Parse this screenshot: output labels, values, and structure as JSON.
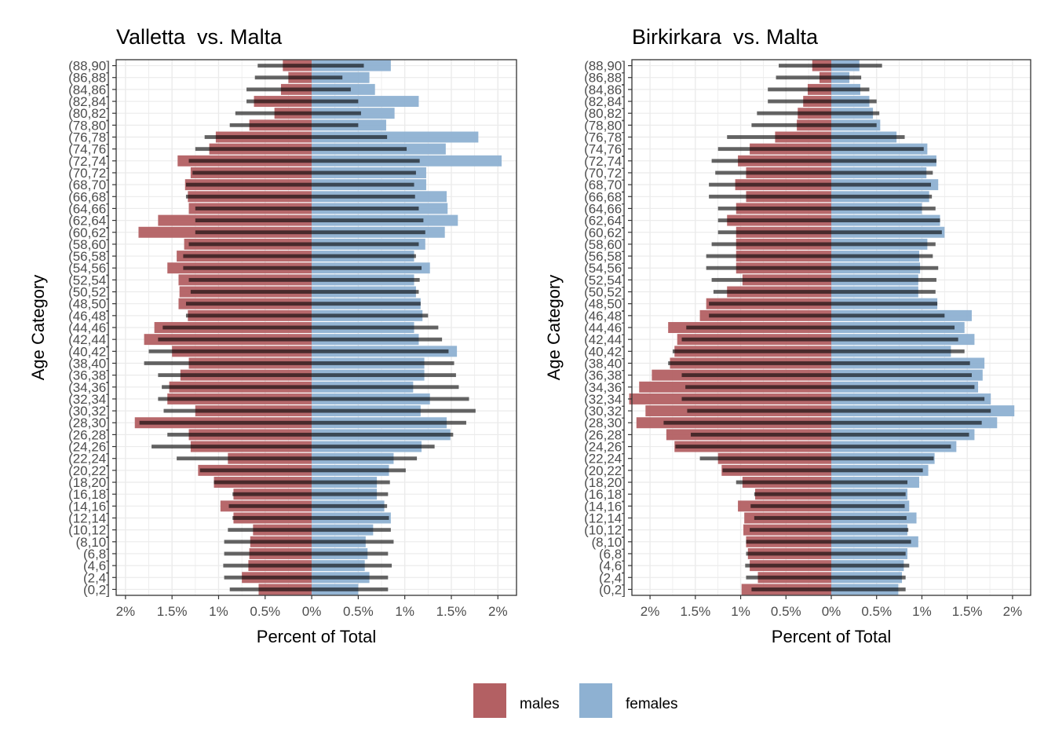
{
  "legend": {
    "items": [
      {
        "label": "males",
        "color": "#B36063"
      },
      {
        "label": "females",
        "color": "#8EB1D2"
      }
    ],
    "position": "bottom"
  },
  "colors": {
    "males": "#B36063",
    "females": "#8EB1D2",
    "reference_bar": "#000000",
    "panel_border": "#333333",
    "grid": "#EBEBEB"
  },
  "chart_data": [
    {
      "type": "bar",
      "orientation": "horizontal-pyramid",
      "title": "Valletta  vs. Malta",
      "xlabel": "Percent of Total",
      "ylabel": "Age Category",
      "xlim": [
        -2.1,
        2.2
      ],
      "x_ticks": [
        -2,
        -1.5,
        -1,
        -0.5,
        0,
        0.5,
        1,
        1.5,
        2
      ],
      "x_tick_labels": [
        "2%",
        "1.5%",
        "1%",
        "0.5%",
        "0%",
        "0.5%",
        "1%",
        "1.5%",
        "2%"
      ],
      "grid": true,
      "categories": [
        "(0,2]",
        "(2,4]",
        "(4,6]",
        "(6,8]",
        "(8,10]",
        "(10,12]",
        "(12,14]",
        "(14,16]",
        "(16,18]",
        "(18,20]",
        "(20,22]",
        "(22,24]",
        "(24,26]",
        "(26,28]",
        "(28,30]",
        "(30,32]",
        "(32,34]",
        "(34,36]",
        "(36,38]",
        "(38,40]",
        "(40,42]",
        "(42,44]",
        "(44,46]",
        "(46,48]",
        "(48,50]",
        "(50,52]",
        "(52,54]",
        "(54,56]",
        "(56,58]",
        "(58,60]",
        "(60,62]",
        "(62,64]",
        "(64,66]",
        "(66,68]",
        "(68,70]",
        "(70,72]",
        "(72,74]",
        "(74,76]",
        "(76,78]",
        "(78,80]",
        "(80,82]",
        "(82,84]",
        "(84,86]",
        "(86,88]",
        "(88,90]"
      ],
      "series": [
        {
          "name": "males",
          "values": [
            0.57,
            0.75,
            0.68,
            0.67,
            0.66,
            0.63,
            0.84,
            0.98,
            0.84,
            1.05,
            1.22,
            0.9,
            1.3,
            1.32,
            1.9,
            1.25,
            1.55,
            1.53,
            1.41,
            1.32,
            1.5,
            1.8,
            1.69,
            1.33,
            1.43,
            1.42,
            1.43,
            1.55,
            1.45,
            1.37,
            1.86,
            1.65,
            1.32,
            1.33,
            1.36,
            1.3,
            1.44,
            1.1,
            1.03,
            0.67,
            0.4,
            0.62,
            0.33,
            0.25,
            0.31
          ]
        },
        {
          "name": "females",
          "values": [
            0.5,
            0.62,
            0.57,
            0.6,
            0.58,
            0.66,
            0.85,
            0.78,
            0.7,
            0.7,
            0.83,
            0.88,
            1.18,
            1.49,
            1.45,
            1.17,
            1.27,
            1.09,
            1.21,
            1.21,
            1.56,
            1.15,
            1.1,
            1.19,
            1.17,
            1.12,
            1.1,
            1.27,
            1.1,
            1.22,
            1.43,
            1.57,
            1.46,
            1.45,
            1.23,
            1.23,
            2.04,
            1.44,
            1.79,
            0.8,
            0.89,
            1.15,
            0.68,
            0.62,
            0.85
          ]
        }
      ],
      "reference": {
        "label": "Malta",
        "males": [
          0.88,
          0.94,
          0.95,
          0.94,
          0.94,
          0.9,
          0.85,
          0.89,
          0.85,
          1.05,
          1.2,
          1.45,
          1.72,
          1.55,
          1.85,
          1.59,
          1.65,
          1.61,
          1.65,
          1.8,
          1.75,
          1.65,
          1.6,
          1.35,
          1.35,
          1.3,
          1.32,
          1.38,
          1.38,
          1.32,
          1.25,
          1.25,
          1.25,
          1.35,
          1.35,
          1.28,
          1.32,
          1.25,
          1.15,
          0.88,
          0.82,
          0.7,
          0.7,
          0.61,
          0.58
        ],
        "females": [
          0.82,
          0.82,
          0.86,
          0.82,
          0.88,
          0.85,
          0.83,
          0.81,
          0.82,
          0.84,
          1.01,
          1.13,
          1.32,
          1.52,
          1.66,
          1.76,
          1.69,
          1.58,
          1.55,
          1.53,
          1.47,
          1.4,
          1.36,
          1.25,
          1.17,
          1.15,
          1.16,
          1.18,
          1.12,
          1.15,
          1.22,
          1.2,
          1.15,
          1.11,
          1.1,
          1.12,
          1.16,
          1.02,
          0.81,
          0.5,
          0.53,
          0.5,
          0.42,
          0.33,
          0.56
        ]
      }
    },
    {
      "type": "bar",
      "orientation": "horizontal-pyramid",
      "title": "Birkirkara  vs. Malta",
      "xlabel": "Percent of Total",
      "ylabel": "Age Category",
      "xlim": [
        -2.2,
        2.2
      ],
      "x_ticks": [
        -2,
        -1.5,
        -1,
        -0.5,
        0,
        0.5,
        1,
        1.5,
        2
      ],
      "x_tick_labels": [
        "2%",
        "1.5%",
        "1%",
        "0.5%",
        "0%",
        "0.5%",
        "1%",
        "1.5%",
        "2%"
      ],
      "grid": true,
      "categories": [
        "(0,2]",
        "(2,4]",
        "(4,6]",
        "(6,8]",
        "(8,10]",
        "(10,12]",
        "(12,14]",
        "(14,16]",
        "(16,18]",
        "(18,20]",
        "(20,22]",
        "(22,24]",
        "(24,26]",
        "(26,28]",
        "(28,30]",
        "(30,32]",
        "(32,34]",
        "(34,36]",
        "(36,38]",
        "(38,40]",
        "(40,42]",
        "(42,44]",
        "(44,46]",
        "(46,48]",
        "(48,50]",
        "(50,52]",
        "(52,54]",
        "(54,56]",
        "(56,58]",
        "(58,60]",
        "(60,62]",
        "(62,64]",
        "(64,66]",
        "(66,68]",
        "(68,70]",
        "(70,72]",
        "(72,74]",
        "(74,76]",
        "(76,78]",
        "(78,80]",
        "(80,82]",
        "(82,84]",
        "(84,86]",
        "(86,88]",
        "(88,90]"
      ],
      "series": [
        {
          "name": "males",
          "values": [
            0.99,
            0.81,
            0.9,
            0.92,
            0.94,
            0.97,
            0.96,
            1.03,
            0.84,
            0.98,
            1.21,
            1.25,
            1.73,
            1.82,
            2.15,
            2.05,
            2.23,
            2.12,
            1.98,
            1.78,
            1.73,
            1.7,
            1.8,
            1.45,
            1.38,
            1.15,
            0.98,
            1.05,
            1.05,
            1.05,
            1.05,
            1.15,
            1.05,
            0.94,
            1.06,
            0.94,
            1.03,
            0.9,
            0.62,
            0.38,
            0.37,
            0.31,
            0.26,
            0.13,
            0.21
          ]
        },
        {
          "name": "females",
          "values": [
            0.74,
            0.78,
            0.8,
            0.84,
            0.96,
            0.84,
            0.94,
            0.86,
            0.84,
            0.97,
            1.07,
            1.14,
            1.38,
            1.58,
            1.83,
            2.02,
            1.76,
            1.62,
            1.67,
            1.69,
            1.32,
            1.58,
            1.47,
            1.55,
            1.17,
            0.96,
            0.96,
            0.98,
            0.97,
            1.06,
            1.25,
            1.2,
            1.0,
            1.08,
            1.18,
            1.05,
            1.16,
            1.06,
            0.72,
            0.54,
            0.46,
            0.42,
            0.32,
            0.2,
            0.31
          ]
        }
      ],
      "reference": {
        "label": "Malta",
        "males": [
          0.88,
          0.94,
          0.95,
          0.94,
          0.94,
          0.9,
          0.85,
          0.89,
          0.85,
          1.05,
          1.2,
          1.45,
          1.72,
          1.55,
          1.85,
          1.59,
          1.65,
          1.61,
          1.65,
          1.8,
          1.75,
          1.65,
          1.6,
          1.35,
          1.35,
          1.3,
          1.32,
          1.38,
          1.38,
          1.32,
          1.25,
          1.25,
          1.25,
          1.35,
          1.35,
          1.28,
          1.32,
          1.25,
          1.15,
          0.88,
          0.82,
          0.7,
          0.7,
          0.61,
          0.58
        ],
        "females": [
          0.82,
          0.82,
          0.86,
          0.82,
          0.88,
          0.85,
          0.83,
          0.81,
          0.82,
          0.84,
          1.01,
          1.13,
          1.32,
          1.52,
          1.66,
          1.76,
          1.69,
          1.58,
          1.55,
          1.53,
          1.47,
          1.4,
          1.36,
          1.25,
          1.17,
          1.15,
          1.16,
          1.18,
          1.12,
          1.15,
          1.22,
          1.2,
          1.15,
          1.11,
          1.1,
          1.12,
          1.16,
          1.02,
          0.81,
          0.5,
          0.53,
          0.5,
          0.42,
          0.33,
          0.56
        ]
      }
    }
  ]
}
